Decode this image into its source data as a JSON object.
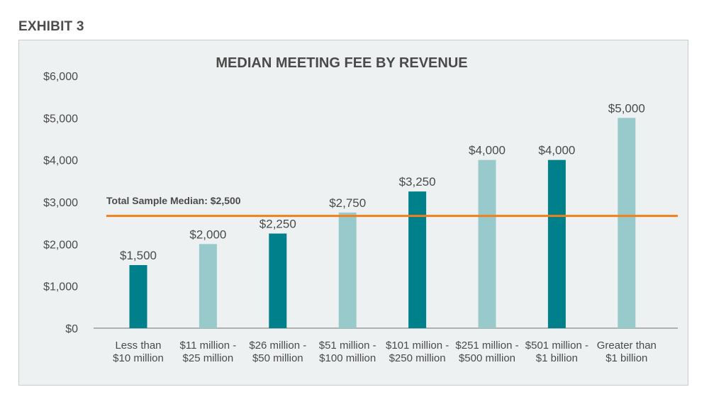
{
  "exhibit_label": "EXHIBIT 3",
  "colors": {
    "dark": "#00808a",
    "light": "#98cacb",
    "reference": "#f07f1c",
    "axis": "#9a9a9a",
    "panel": "#eef1f2"
  },
  "chart_data": {
    "type": "bar",
    "title": "MEDIAN MEETING FEE BY REVENUE",
    "xlabel": "",
    "ylabel": "",
    "ylim": [
      0,
      6000
    ],
    "yticks": [
      0,
      1000,
      2000,
      3000,
      4000,
      5000,
      6000
    ],
    "ytick_labels": [
      "$0",
      "$1,000",
      "$2,000",
      "$3,000",
      "$4,000",
      "$5,000",
      "$6,000"
    ],
    "grid": false,
    "categories": [
      [
        "Less than",
        "$10 million"
      ],
      [
        "$11 million -",
        "$25 million"
      ],
      [
        "$26 million -",
        "$50 million"
      ],
      [
        "$51 million -",
        "$100 million"
      ],
      [
        "$101 million -",
        "$250 million"
      ],
      [
        "$251 million -",
        "$500 million"
      ],
      [
        "$501 million -",
        "$1 billion"
      ],
      [
        "Greater than",
        "$1 billion"
      ]
    ],
    "values": [
      1500,
      2000,
      2250,
      2750,
      3250,
      4000,
      4000,
      5000
    ],
    "data_labels": [
      "$1,500",
      "$2,000",
      "$2,250",
      "$2,750",
      "$3,250",
      "$4,000",
      "$4,000",
      "$5,000"
    ],
    "bar_shades": [
      "dark",
      "light",
      "dark",
      "light",
      "dark",
      "light",
      "dark",
      "light"
    ],
    "reference_line": {
      "label": "Total Sample Median: $2,500",
      "value": 2500
    }
  }
}
